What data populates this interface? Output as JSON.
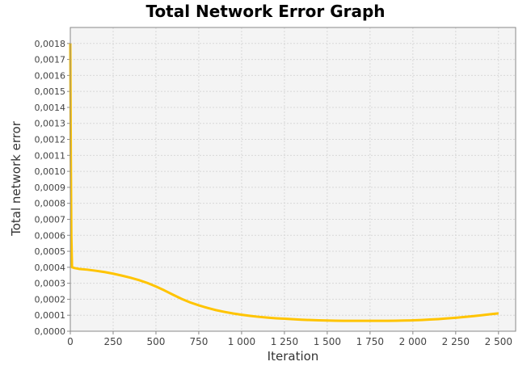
{
  "chart_data": {
    "type": "line",
    "title": "Total Network Error Graph",
    "xlabel": "Iteration",
    "ylabel": "Total network error",
    "xlim": [
      0,
      2600
    ],
    "ylim": [
      0,
      0.0019
    ],
    "x_ticks": [
      0,
      250,
      500,
      750,
      1000,
      1250,
      1500,
      1750,
      2000,
      2250,
      2500
    ],
    "x_tick_labels": [
      "0",
      "250",
      "500",
      "750",
      "1 000",
      "1 250",
      "1 500",
      "1 750",
      "2 000",
      "2 250",
      "2 500"
    ],
    "y_ticks": [
      0,
      0.0001,
      0.0002,
      0.0003,
      0.0004,
      0.0005,
      0.0006,
      0.0007,
      0.0008,
      0.0009,
      0.001,
      0.0011,
      0.0012,
      0.0013,
      0.0014,
      0.0015,
      0.0016,
      0.0017,
      0.0018
    ],
    "y_tick_labels": [
      "0,0000",
      "0,0001",
      "0,0002",
      "0,0003",
      "0,0004",
      "0,0005",
      "0,0006",
      "0,0007",
      "0,0008",
      "0,0009",
      "0,0010",
      "0,0011",
      "0,0012",
      "0,0013",
      "0,0014",
      "0,0015",
      "0,0016",
      "0,0017",
      "0,0018"
    ],
    "grid": true,
    "colors": {
      "series": "#ffc400",
      "plot_background": "#f4f4f4",
      "grid": "#d8d8d8"
    },
    "series": [
      {
        "x": [
          0,
          3,
          6,
          10,
          25,
          50,
          100,
          150,
          200,
          250,
          300,
          350,
          400,
          450,
          500,
          550,
          600,
          650,
          700,
          750,
          800,
          850,
          900,
          950,
          1000,
          1050,
          1100,
          1150,
          1200,
          1250,
          1300,
          1350,
          1400,
          1450,
          1500,
          1550,
          1600,
          1650,
          1700,
          1750,
          1800,
          1850,
          1900,
          1950,
          2000,
          2050,
          2100,
          2150,
          2200,
          2250,
          2300,
          2350,
          2400,
          2450,
          2500
        ],
        "y": [
          0.0018,
          0.0011,
          0.0006,
          0.0004,
          0.000395,
          0.00039,
          0.000385,
          0.000378,
          0.00037,
          0.00036,
          0.000348,
          0.000335,
          0.00032,
          0.000302,
          0.00028,
          0.000255,
          0.000228,
          0.000202,
          0.00018,
          0.000162,
          0.000146,
          0.000132,
          0.000121,
          0.000111,
          0.000103,
          9.6e-05,
          9e-05,
          8.5e-05,
          8.1e-05,
          7.8e-05,
          7.5e-05,
          7.2e-05,
          7e-05,
          6.8e-05,
          6.7e-05,
          6.6e-05,
          6.5e-05,
          6.5e-05,
          6.5e-05,
          6.5e-05,
          6.5e-05,
          6.5e-05,
          6.6e-05,
          6.7e-05,
          6.8e-05,
          7e-05,
          7.3e-05,
          7.6e-05,
          8e-05,
          8.4e-05,
          8.9e-05,
          9.4e-05,
          0.0001,
          0.000106,
          0.000112
        ]
      }
    ]
  }
}
